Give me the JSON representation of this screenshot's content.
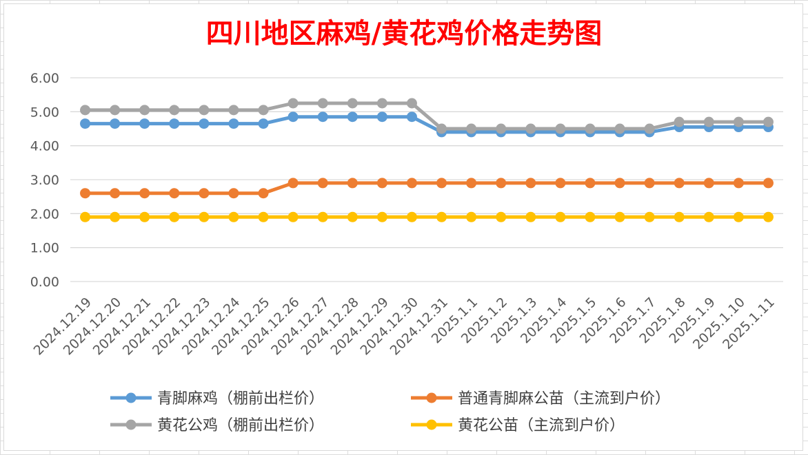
{
  "chart_data": {
    "type": "line",
    "title": "四川地区麻鸡/黄花鸡价格走势图",
    "xlabel": "",
    "ylabel": "",
    "ylim": [
      0,
      6
    ],
    "yticks": [
      "0.00",
      "1.00",
      "2.00",
      "3.00",
      "4.00",
      "5.00",
      "6.00"
    ],
    "grid": true,
    "legend_position": "bottom",
    "categories": [
      "2024.12.19",
      "2024.12.20",
      "2024.12.21",
      "2024.12.22",
      "2024.12.23",
      "2024.12.24",
      "2024.12.25",
      "2024.12.26",
      "2024.12.27",
      "2024.12.28",
      "2024.12.29",
      "2024.12.30",
      "2024.12.31",
      "2025.1.1",
      "2025.1.2",
      "2025.1.3",
      "2025.1.4",
      "2025.1.5",
      "2025.1.6",
      "2025.1.7",
      "2025.1.8",
      "2025.1.9",
      "2025.1.10",
      "2025.1.11"
    ],
    "series": [
      {
        "name": "青脚麻鸡（棚前出栏价）",
        "color": "#5b9bd5",
        "values": [
          4.65,
          4.65,
          4.65,
          4.65,
          4.65,
          4.65,
          4.65,
          4.85,
          4.85,
          4.85,
          4.85,
          4.85,
          4.4,
          4.4,
          4.4,
          4.4,
          4.4,
          4.4,
          4.4,
          4.4,
          4.55,
          4.55,
          4.55,
          4.55
        ]
      },
      {
        "name": "普通青脚麻公苗（主流到户价）",
        "color": "#ed7d31",
        "values": [
          2.6,
          2.6,
          2.6,
          2.6,
          2.6,
          2.6,
          2.6,
          2.9,
          2.9,
          2.9,
          2.9,
          2.9,
          2.9,
          2.9,
          2.9,
          2.9,
          2.9,
          2.9,
          2.9,
          2.9,
          2.9,
          2.9,
          2.9,
          2.9
        ]
      },
      {
        "name": "黄花公鸡（棚前出栏价）",
        "color": "#a5a5a5",
        "values": [
          5.05,
          5.05,
          5.05,
          5.05,
          5.05,
          5.05,
          5.05,
          5.25,
          5.25,
          5.25,
          5.25,
          5.25,
          4.5,
          4.5,
          4.5,
          4.5,
          4.5,
          4.5,
          4.5,
          4.5,
          4.7,
          4.7,
          4.7,
          4.7
        ]
      },
      {
        "name": "黄花公苗（主流到户价）",
        "color": "#ffc000",
        "values": [
          1.9,
          1.9,
          1.9,
          1.9,
          1.9,
          1.9,
          1.9,
          1.9,
          1.9,
          1.9,
          1.9,
          1.9,
          1.9,
          1.9,
          1.9,
          1.9,
          1.9,
          1.9,
          1.9,
          1.9,
          1.9,
          1.9,
          1.9,
          1.9
        ]
      }
    ]
  }
}
